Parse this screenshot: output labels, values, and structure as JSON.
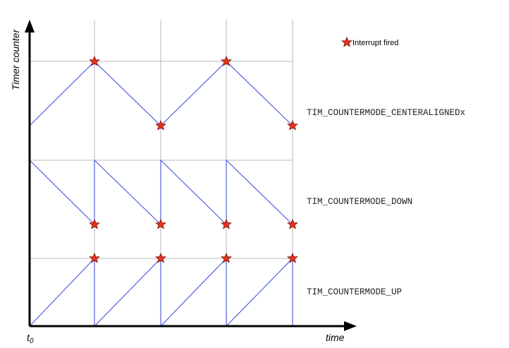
{
  "axes": {
    "y_label": "Timer counter",
    "x_label": "time",
    "origin_label": "t0",
    "origin_main": "t",
    "origin_sub": "0"
  },
  "legend": {
    "label": "Interrupt fired",
    "marker_color": "#e8321e"
  },
  "modes": [
    {
      "id": "center",
      "label": "TIM_COUNTERMODE_CENTERALIGNEDx"
    },
    {
      "id": "down",
      "label": "TIM_COUNTERMODE_DOWN"
    },
    {
      "id": "up",
      "label": "TIM_COUNTERMODE_UP"
    }
  ],
  "colors": {
    "waveform": "#4f5fe0",
    "grid": "#b8b8b8",
    "axis": "#000000",
    "star": "#e8321e"
  }
}
